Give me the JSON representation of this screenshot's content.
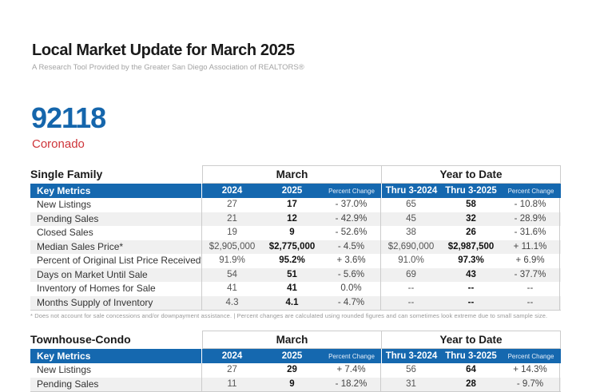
{
  "page": {
    "title": "Local Market Update for March 2025",
    "subtitle": "A Research Tool Provided by the Greater San Diego Association of REALTORS®",
    "zip_code": "92118",
    "area_name": "Coronado",
    "footnote": "* Does not account for sale concessions and/or downpayment assistance.  |  Percent changes are calculated using rounded figures and can sometimes look extreme due to small sample size."
  },
  "colors": {
    "header_bar_blue": "#1568af",
    "zip_blue": "#1566ac",
    "area_red": "#ce3439",
    "row_stripe_gray": "#f0f0f0",
    "border_gray": "#cccccc"
  },
  "headers": {
    "key_metrics": "Key Metrics",
    "march": "March",
    "year_to_date": "Year to Date",
    "col_2024": "2024",
    "col_2025": "2025",
    "col_pct_change": "Percent Change",
    "col_thru_2024": "Thru 3-2024",
    "col_thru_2025": "Thru 3-2025"
  },
  "tables": [
    {
      "section": "Single Family",
      "rows": [
        {
          "metric": "New Listings",
          "m2024": "27",
          "m2025": "17",
          "mpct": "- 37.0%",
          "y2024": "65",
          "y2025": "58",
          "ypct": "- 10.8%"
        },
        {
          "metric": "Pending Sales",
          "m2024": "21",
          "m2025": "12",
          "mpct": "- 42.9%",
          "y2024": "45",
          "y2025": "32",
          "ypct": "- 28.9%"
        },
        {
          "metric": "Closed Sales",
          "m2024": "19",
          "m2025": "9",
          "mpct": "- 52.6%",
          "y2024": "38",
          "y2025": "26",
          "ypct": "- 31.6%"
        },
        {
          "metric": "Median Sales Price*",
          "m2024": "$2,905,000",
          "m2025": "$2,775,000",
          "mpct": "- 4.5%",
          "y2024": "$2,690,000",
          "y2025": "$2,987,500",
          "ypct": "+ 11.1%"
        },
        {
          "metric": "Percent of Original List Price Received*",
          "m2024": "91.9%",
          "m2025": "95.2%",
          "mpct": "+ 3.6%",
          "y2024": "91.0%",
          "y2025": "97.3%",
          "ypct": "+ 6.9%"
        },
        {
          "metric": "Days on Market Until Sale",
          "m2024": "54",
          "m2025": "51",
          "mpct": "- 5.6%",
          "y2024": "69",
          "y2025": "43",
          "ypct": "- 37.7%"
        },
        {
          "metric": "Inventory of Homes for Sale",
          "m2024": "41",
          "m2025": "41",
          "mpct": "0.0%",
          "y2024": "--",
          "y2025": "--",
          "ypct": "--"
        },
        {
          "metric": "Months Supply of Inventory",
          "m2024": "4.3",
          "m2025": "4.1",
          "mpct": "- 4.7%",
          "y2024": "--",
          "y2025": "--",
          "ypct": "--"
        }
      ]
    },
    {
      "section": "Townhouse-Condo",
      "rows": [
        {
          "metric": "New Listings",
          "m2024": "27",
          "m2025": "29",
          "mpct": "+ 7.4%",
          "y2024": "56",
          "y2025": "64",
          "ypct": "+ 14.3%"
        },
        {
          "metric": "Pending Sales",
          "m2024": "11",
          "m2025": "9",
          "mpct": "- 18.2%",
          "y2024": "31",
          "y2025": "28",
          "ypct": "- 9.7%"
        }
      ]
    }
  ]
}
